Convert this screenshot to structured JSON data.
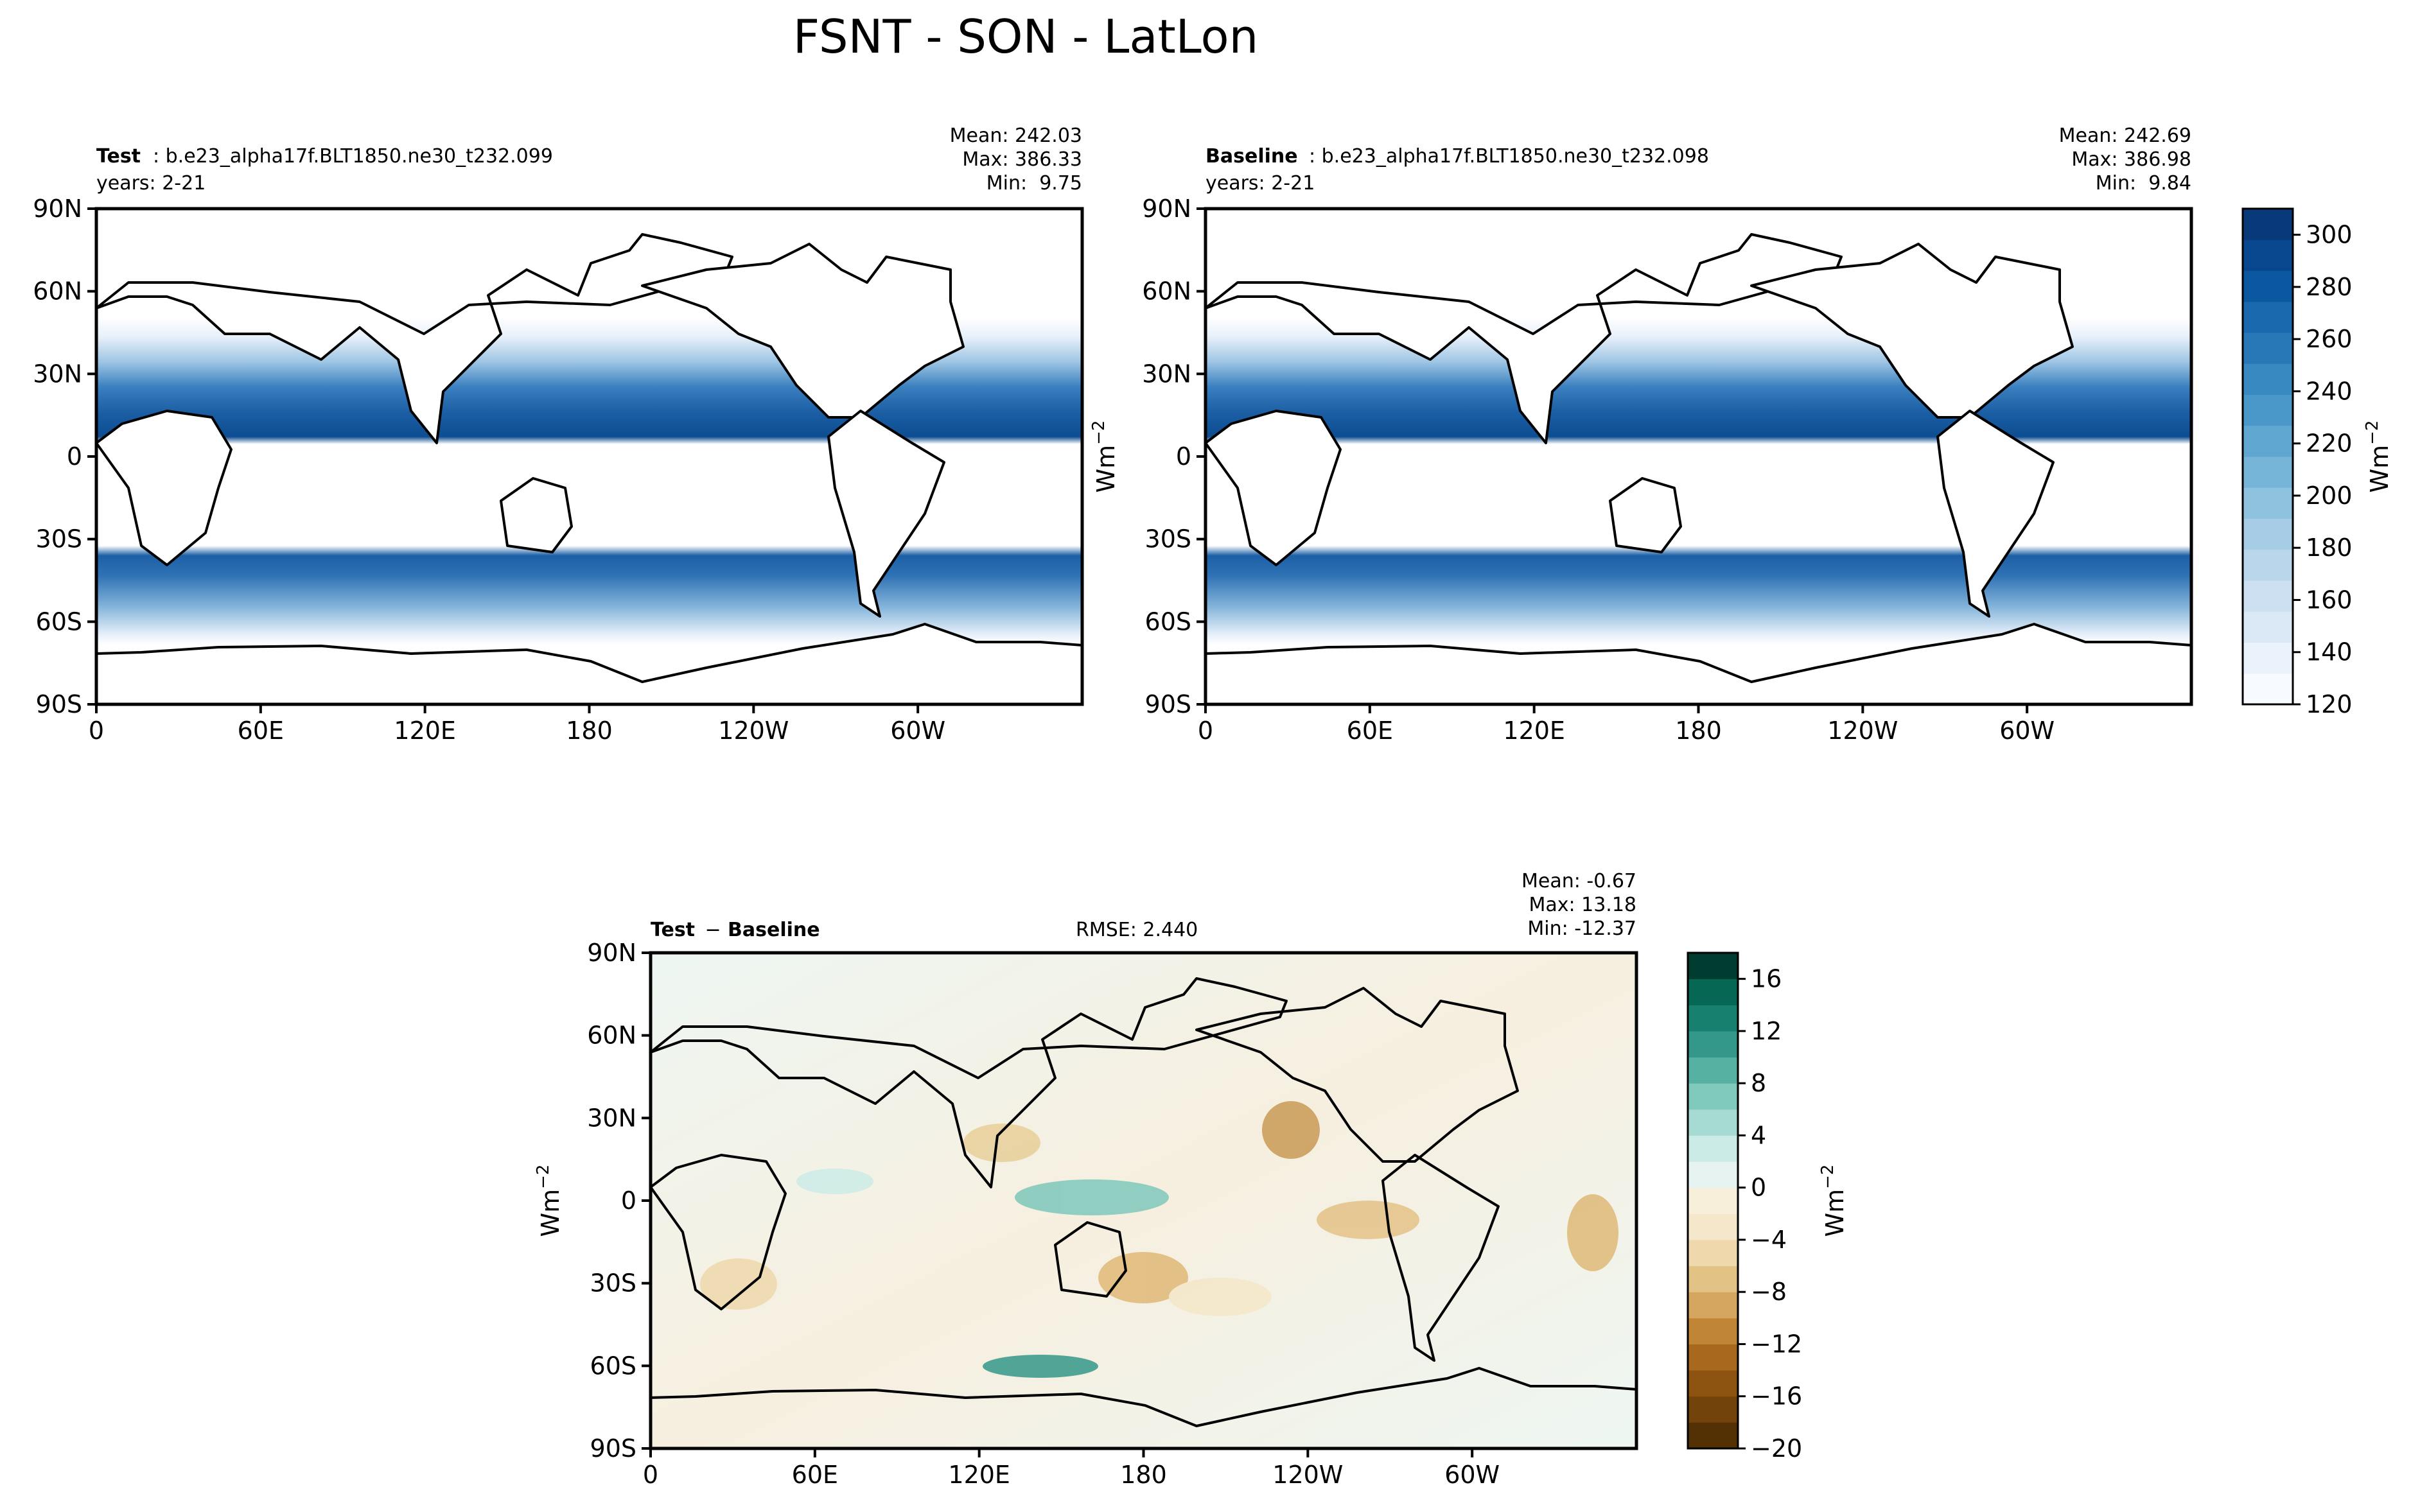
{
  "figure_title": "FSNT - SON - LatLon",
  "chart_data": [
    {
      "type": "heatmap",
      "panel": "test",
      "label_bold": "Test",
      "label_rest": ": b.e23_alpha17f.BLT1850.ne30_t232.099",
      "years": "years: 2-21",
      "stats": [
        "Mean: 242.03",
        "Max: 386.33",
        "Min:  9.75"
      ],
      "xticks": [
        "0",
        "60E",
        "120E",
        "180",
        "120W",
        "60W"
      ],
      "yticks": [
        "90N",
        "60N",
        "30N",
        "0",
        "30S",
        "60S",
        "90S"
      ],
      "ylabel": "",
      "x_range": [
        0,
        360
      ],
      "y_range": [
        -90,
        90
      ],
      "colorscale": "Blues"
    },
    {
      "type": "heatmap",
      "panel": "baseline",
      "label_bold": "Baseline",
      "label_rest": ": b.e23_alpha17f.BLT1850.ne30_t232.098",
      "years": "years: 2-21",
      "stats": [
        "Mean: 242.69",
        "Max: 386.98",
        "Min:  9.84"
      ],
      "xticks": [
        "0",
        "60E",
        "120E",
        "180",
        "120W",
        "60W"
      ],
      "yticks": [
        "90N",
        "60N",
        "30N",
        "0",
        "30S",
        "60S",
        "90S"
      ],
      "ylabel": "Wm",
      "ylabel_sup": "−2",
      "x_range": [
        0,
        360
      ],
      "y_range": [
        -90,
        90
      ],
      "colorbar": {
        "ticks": [
          "120",
          "140",
          "160",
          "180",
          "200",
          "220",
          "240",
          "260",
          "280",
          "300"
        ],
        "range": [
          120,
          310
        ],
        "label": "Wm",
        "label_sup": "−2",
        "colors": [
          "#f7fbff",
          "#eaf2fb",
          "#dbe9f6",
          "#cde0f1",
          "#bad6eb",
          "#a5cce4",
          "#8fc2de",
          "#76b4d8",
          "#5fa6d1",
          "#4a98c9",
          "#3888c1",
          "#2878b8",
          "#1a68ae",
          "#0c58a0",
          "#08478d",
          "#083a7a"
        ]
      }
    },
    {
      "type": "heatmap",
      "panel": "difference",
      "label_bold": "Test",
      "label_mid": " − ",
      "label_bold2": "Baseline",
      "rmse": "RMSE: 2.440",
      "stats": [
        "Mean: -0.67",
        "Max: 13.18",
        "Min: -12.37"
      ],
      "xticks": [
        "0",
        "60E",
        "120E",
        "180",
        "120W",
        "60W"
      ],
      "yticks": [
        "90N",
        "60N",
        "30N",
        "0",
        "30S",
        "60S",
        "90S"
      ],
      "ylabel": "Wm",
      "ylabel_sup": "−2",
      "x_range": [
        0,
        360
      ],
      "y_range": [
        -90,
        90
      ],
      "colorbar": {
        "ticks": [
          "16",
          "12",
          "8",
          "4",
          "0",
          "−4",
          "−8",
          "−12",
          "−16",
          "−20"
        ],
        "range": [
          -20,
          18
        ],
        "label": "Wm",
        "label_sup": "−2",
        "colors": [
          "#543005",
          "#72430a",
          "#8c5410",
          "#a8691f",
          "#c08636",
          "#d4a65f",
          "#e3c286",
          "#eed8ac",
          "#f5e7c9",
          "#f8efdb",
          "#e6f3f1",
          "#cbebe6",
          "#a5dbd3",
          "#7fc8bc",
          "#57b1a3",
          "#33988a",
          "#18806f",
          "#076755",
          "#003c30"
        ]
      }
    }
  ]
}
